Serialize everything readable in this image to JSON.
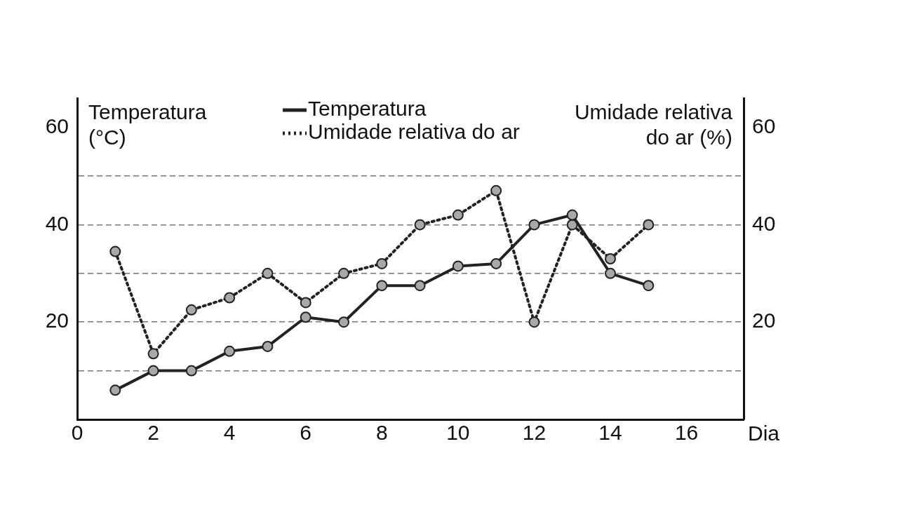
{
  "chart_data": {
    "type": "line",
    "xlabel": "Dia",
    "ylabel": "Temperatura (°C)",
    "y2label": "Umidade relativa do ar (%)",
    "x": [
      1,
      2,
      3,
      4,
      5,
      6,
      7,
      8,
      9,
      10,
      11,
      12,
      13,
      14,
      15
    ],
    "series": [
      {
        "name": "Temperatura",
        "color": "#222222",
        "line_style": "solid",
        "values": [
          6,
          10,
          10,
          14,
          15,
          21,
          20,
          27.5,
          27.5,
          31.5,
          32,
          40,
          42,
          30,
          27.5
        ]
      },
      {
        "name": "Umidade relativa do ar",
        "color": "#222222",
        "line_style": "dotted",
        "values": [
          34.5,
          13.5,
          22.5,
          25,
          30,
          24,
          30,
          32,
          40,
          42,
          47,
          20,
          40,
          33,
          40
        ]
      }
    ],
    "xlim": [
      0,
      17.5
    ],
    "xticks": [
      0,
      2,
      4,
      6,
      8,
      10,
      12,
      14,
      16
    ],
    "ylim": [
      0,
      66
    ],
    "yticks": [
      {
        "value": 10,
        "label": null
      },
      20,
      {
        "value": 30,
        "label": null
      },
      40,
      {
        "value": 50,
        "label": null
      },
      60
    ],
    "y2lim": [
      0,
      66
    ],
    "y2ticks": [
      {
        "value": 10,
        "label": null
      },
      20,
      {
        "value": 30,
        "label": null
      },
      40,
      {
        "value": 50,
        "label": null
      },
      60
    ],
    "grid": "y",
    "legend": "top",
    "marker": "circle"
  }
}
